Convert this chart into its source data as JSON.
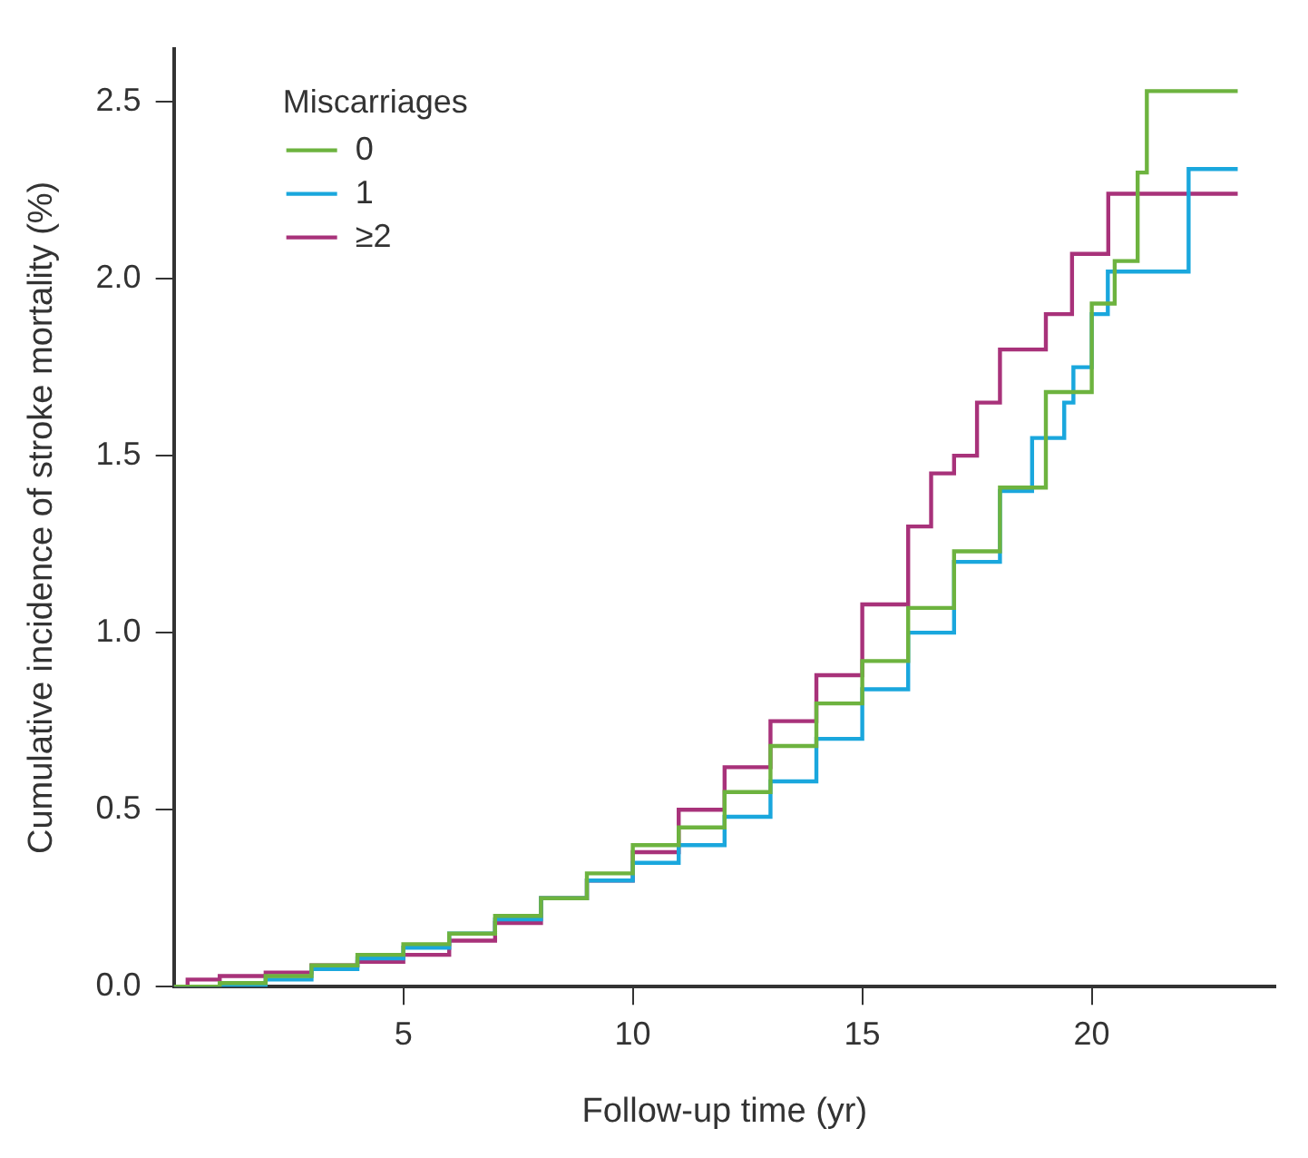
{
  "chart_data": {
    "type": "step",
    "xlabel": "Follow-up time (yr)",
    "ylabel": "Cumulative incidence of stroke mortality (%)",
    "legend_title": "Miscarriages",
    "legend": "top left",
    "grid": false,
    "xlim": [
      0,
      24
    ],
    "xticks": [
      5,
      10,
      15,
      20
    ],
    "ylim": [
      0,
      2.65
    ],
    "yticks": [
      {
        "value": 0,
        "label": "0.0"
      },
      {
        "value": 0.5,
        "label": "0.5"
      },
      {
        "value": 1,
        "label": "1.0"
      },
      {
        "value": 1.5,
        "label": "1.5"
      },
      {
        "value": 2,
        "label": "2.0"
      },
      {
        "value": 2.5,
        "label": "2.5"
      }
    ],
    "series": [
      {
        "name": "0",
        "color": "#6db33f",
        "x": [
          0,
          1,
          2,
          3,
          4,
          5,
          6,
          7,
          8,
          9,
          10,
          11,
          12,
          13,
          14,
          15,
          16,
          17,
          18,
          19,
          20,
          20.5,
          21,
          21.2,
          22.3,
          23.18
        ],
        "values": [
          0,
          0.01,
          0.03,
          0.06,
          0.09,
          0.12,
          0.15,
          0.2,
          0.25,
          0.32,
          0.4,
          0.45,
          0.55,
          0.68,
          0.8,
          0.92,
          1.07,
          1.23,
          1.41,
          1.68,
          1.93,
          2.05,
          2.3,
          2.53,
          2.53,
          2.53
        ]
      },
      {
        "name": "1",
        "color": "#1aa7dd",
        "x": [
          0,
          2,
          3,
          4,
          5,
          6,
          7,
          8,
          9,
          10,
          11,
          12,
          13,
          14,
          15,
          16,
          17,
          18,
          18.7,
          19.4,
          19.6,
          20,
          20.35,
          22.1,
          22.11,
          23.18
        ],
        "values": [
          0,
          0.02,
          0.05,
          0.08,
          0.11,
          0.15,
          0.19,
          0.25,
          0.3,
          0.35,
          0.4,
          0.48,
          0.58,
          0.7,
          0.84,
          1.0,
          1.2,
          1.4,
          1.55,
          1.65,
          1.75,
          1.9,
          2.02,
          2.02,
          2.31,
          2.31
        ]
      },
      {
        "name": "≥2",
        "color": "#a8327a",
        "x": [
          0,
          0.3,
          1,
          2,
          3,
          4,
          5,
          6,
          7,
          8,
          9,
          10,
          11,
          12,
          13,
          14,
          15,
          16,
          16.5,
          17,
          17.5,
          18,
          19,
          19.57,
          20.35,
          20.36,
          23.18
        ],
        "values": [
          0,
          0.02,
          0.03,
          0.04,
          0.06,
          0.07,
          0.09,
          0.13,
          0.18,
          0.25,
          0.3,
          0.38,
          0.5,
          0.62,
          0.75,
          0.88,
          1.08,
          1.3,
          1.45,
          1.5,
          1.65,
          1.8,
          1.9,
          2.07,
          2.07,
          2.24,
          2.24
        ]
      }
    ]
  }
}
